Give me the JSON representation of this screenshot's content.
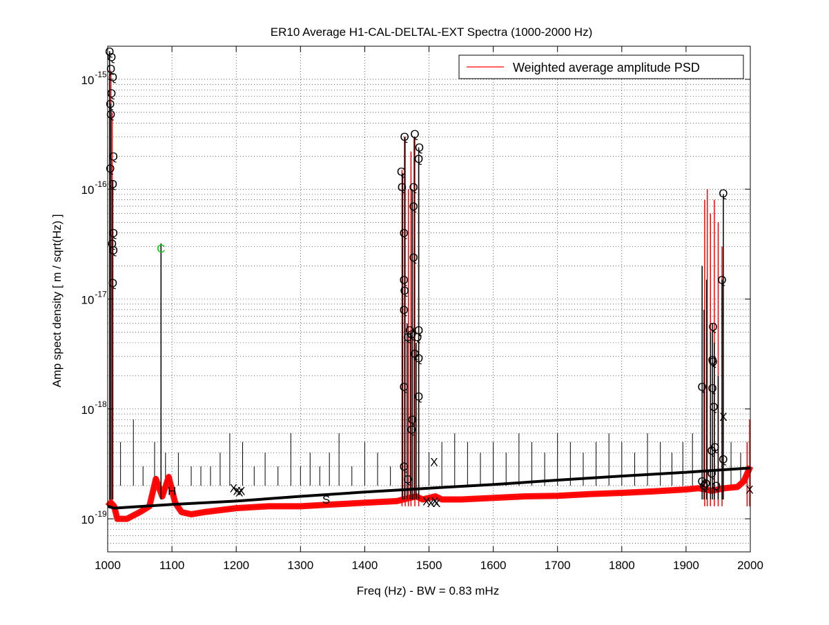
{
  "chart_data": {
    "type": "line",
    "title": "ER10 Average H1-CAL-DELTAL-EXT Spectra (1000-2000 Hz)",
    "xlabel": "Freq (Hz) - BW = 0.83 mHz",
    "ylabel": "Amp spect density [ m / sqrt(Hz) ]",
    "xlim": [
      1000,
      2000
    ],
    "ylim": [
      5e-20,
      2e-15
    ],
    "yscale": "log",
    "grid": true,
    "legend_position": "top-right",
    "xticks": [
      1000,
      1100,
      1200,
      1300,
      1400,
      1500,
      1600,
      1700,
      1800,
      1900,
      2000
    ],
    "xtick_labels": [
      "1000",
      "1100",
      "1200",
      "1300",
      "1400",
      "1500",
      "1600",
      "1700",
      "1800",
      "1900",
      "2000"
    ],
    "yticks": [
      1e-19,
      1e-18,
      1e-17,
      1e-16,
      1e-15
    ],
    "ytick_labels": [
      {
        "base": "10",
        "exp": "-19"
      },
      {
        "base": "10",
        "exp": "-18"
      },
      {
        "base": "10",
        "exp": "-17"
      },
      {
        "base": "10",
        "exp": "-16"
      },
      {
        "base": "10",
        "exp": "-15"
      }
    ],
    "series": [
      {
        "name": "Weighted average amplitude PSD",
        "color": "#ff0000",
        "x": [
          1000,
          1005,
          1010,
          1015,
          1030,
          1050,
          1065,
          1075,
          1085,
          1095,
          1105,
          1115,
          1130,
          1150,
          1200,
          1250,
          1300,
          1350,
          1400,
          1450,
          1460,
          1480,
          1490,
          1500,
          1510,
          1520,
          1550,
          1600,
          1650,
          1700,
          1750,
          1800,
          1850,
          1900,
          1920,
          1940,
          1960,
          1980,
          1990,
          2000
        ],
        "y": [
          1.3e-19,
          1.4e-19,
          1.3e-19,
          1e-19,
          1e-19,
          1.15e-19,
          1.3e-19,
          2.3e-19,
          1.6e-19,
          2.4e-19,
          1.4e-19,
          1.15e-19,
          1.1e-19,
          1.15e-19,
          1.25e-19,
          1.3e-19,
          1.3e-19,
          1.35e-19,
          1.4e-19,
          1.45e-19,
          1.5e-19,
          1.6e-19,
          1.5e-19,
          1.55e-19,
          1.6e-19,
          1.5e-19,
          1.5e-19,
          1.55e-19,
          1.6e-19,
          1.62e-19,
          1.68e-19,
          1.72e-19,
          1.78e-19,
          1.85e-19,
          1.9e-19,
          1.8e-19,
          1.9e-19,
          1.95e-19,
          2.2e-19,
          3e-19
        ]
      }
    ],
    "floor": {
      "color": "#000000",
      "x": [
        1000,
        1010,
        1100,
        1200,
        1300,
        1400,
        1500,
        1600,
        1700,
        1800,
        1900,
        2000
      ],
      "y": [
        1.3e-19,
        1.25e-19,
        1.35e-19,
        1.45e-19,
        1.6e-19,
        1.75e-19,
        1.9e-19,
        2.05e-19,
        2.25e-19,
        2.45e-19,
        2.65e-19,
        2.9e-19
      ]
    },
    "red_peaks": [
      {
        "x": 1003,
        "y": 1.8e-15
      },
      {
        "x": 1005,
        "y": 1.2e-15
      },
      {
        "x": 1007,
        "y": 5e-16
      },
      {
        "x": 1458,
        "y": 1.5e-16
      },
      {
        "x": 1463,
        "y": 3e-16
      },
      {
        "x": 1468,
        "y": 1e-16
      },
      {
        "x": 1472,
        "y": 2.2e-16
      },
      {
        "x": 1478,
        "y": 3e-16
      },
      {
        "x": 1484,
        "y": 2e-16
      },
      {
        "x": 1929,
        "y": 8e-17
      },
      {
        "x": 1933,
        "y": 1e-16
      },
      {
        "x": 1938,
        "y": 6e-17
      },
      {
        "x": 1944,
        "y": 8e-17
      },
      {
        "x": 1950,
        "y": 5e-17
      },
      {
        "x": 1956,
        "y": 3e-17
      },
      {
        "x": 1995,
        "y": 5e-19
      },
      {
        "x": 1999,
        "y": 8e-19
      }
    ],
    "black_peaks": [
      {
        "x": 1003,
        "y": 1.8e-15
      },
      {
        "x": 1005,
        "y": 6e-16
      },
      {
        "x": 1008,
        "y": 1.2e-16
      },
      {
        "x": 1083,
        "y": 3.2e-17
      },
      {
        "x": 1459,
        "y": 1.4e-16
      },
      {
        "x": 1462,
        "y": 3e-16
      },
      {
        "x": 1466,
        "y": 6e-18
      },
      {
        "x": 1471,
        "y": 5e-18
      },
      {
        "x": 1474,
        "y": 1e-16
      },
      {
        "x": 1477,
        "y": 3e-16
      },
      {
        "x": 1480,
        "y": 4e-18
      },
      {
        "x": 1484,
        "y": 2.4e-16
      },
      {
        "x": 1925,
        "y": 2e-17
      },
      {
        "x": 1928,
        "y": 8e-18
      },
      {
        "x": 1932,
        "y": 1.5e-17
      },
      {
        "x": 1938,
        "y": 5e-18
      },
      {
        "x": 1941,
        "y": 6e-18
      },
      {
        "x": 1944,
        "y": 4e-18
      },
      {
        "x": 1950,
        "y": 2e-18
      },
      {
        "x": 1956,
        "y": 1.5e-17
      },
      {
        "x": 1958,
        "y": 9e-17
      }
    ],
    "comb_lines": [
      {
        "x": 1020,
        "y": 5e-19
      },
      {
        "x": 1040,
        "y": 8e-19
      },
      {
        "x": 1055,
        "y": 3e-19
      },
      {
        "x": 1073,
        "y": 5e-19
      },
      {
        "x": 1090,
        "y": 4e-19
      },
      {
        "x": 1110,
        "y": 4e-19
      },
      {
        "x": 1130,
        "y": 3e-19
      },
      {
        "x": 1145,
        "y": 3e-19
      },
      {
        "x": 1160,
        "y": 3e-19
      },
      {
        "x": 1175,
        "y": 4e-19
      },
      {
        "x": 1190,
        "y": 6e-19
      },
      {
        "x": 1210,
        "y": 5e-19
      },
      {
        "x": 1228,
        "y": 3e-19
      },
      {
        "x": 1245,
        "y": 4e-19
      },
      {
        "x": 1265,
        "y": 3e-19
      },
      {
        "x": 1285,
        "y": 6e-19
      },
      {
        "x": 1300,
        "y": 3e-19
      },
      {
        "x": 1315,
        "y": 4e-19
      },
      {
        "x": 1330,
        "y": 3e-19
      },
      {
        "x": 1345,
        "y": 4e-19
      },
      {
        "x": 1360,
        "y": 6e-19
      },
      {
        "x": 1380,
        "y": 3e-19
      },
      {
        "x": 1400,
        "y": 5e-19
      },
      {
        "x": 1420,
        "y": 4e-19
      },
      {
        "x": 1440,
        "y": 3e-19
      },
      {
        "x": 1500,
        "y": 4e-19
      },
      {
        "x": 1520,
        "y": 5e-19
      },
      {
        "x": 1540,
        "y": 6e-19
      },
      {
        "x": 1560,
        "y": 5e-19
      },
      {
        "x": 1580,
        "y": 4e-19
      },
      {
        "x": 1600,
        "y": 5e-19
      },
      {
        "x": 1620,
        "y": 4e-19
      },
      {
        "x": 1640,
        "y": 6e-19
      },
      {
        "x": 1660,
        "y": 5e-19
      },
      {
        "x": 1680,
        "y": 4e-19
      },
      {
        "x": 1700,
        "y": 6e-19
      },
      {
        "x": 1720,
        "y": 5e-19
      },
      {
        "x": 1740,
        "y": 4e-19
      },
      {
        "x": 1760,
        "y": 5e-19
      },
      {
        "x": 1780,
        "y": 6e-19
      },
      {
        "x": 1800,
        "y": 5e-19
      },
      {
        "x": 1820,
        "y": 4e-19
      },
      {
        "x": 1840,
        "y": 6e-19
      },
      {
        "x": 1860,
        "y": 5e-19
      },
      {
        "x": 1878,
        "y": 4e-19
      },
      {
        "x": 1895,
        "y": 5e-19
      },
      {
        "x": 1910,
        "y": 6e-19
      },
      {
        "x": 1970,
        "y": 5e-19
      },
      {
        "x": 1985,
        "y": 4e-19
      }
    ],
    "markers": [
      {
        "symbol": "Q",
        "color": "#000000",
        "points": [
          {
            "x": 1003,
            "y": 1.8e-15
          },
          {
            "x": 1006,
            "y": 1.6e-15
          },
          {
            "x": 1005,
            "y": 1.25e-15
          },
          {
            "x": 1008,
            "y": 1.05e-15
          },
          {
            "x": 1006,
            "y": 7.5e-16
          },
          {
            "x": 1004,
            "y": 6e-16
          },
          {
            "x": 1005,
            "y": 4.8e-16
          },
          {
            "x": 1009,
            "y": 2e-16
          },
          {
            "x": 1004,
            "y": 1.55e-16
          },
          {
            "x": 1008,
            "y": 1.12e-16
          },
          {
            "x": 1009,
            "y": 4e-17
          },
          {
            "x": 1007,
            "y": 3.2e-17
          },
          {
            "x": 1009,
            "y": 2.8e-17
          },
          {
            "x": 1008,
            "y": 1.4e-17
          },
          {
            "x": 1462,
            "y": 3e-16
          },
          {
            "x": 1457,
            "y": 1.45e-16
          },
          {
            "x": 1458,
            "y": 1.05e-16
          },
          {
            "x": 1461,
            "y": 4e-17
          },
          {
            "x": 1461,
            "y": 1.5e-17
          },
          {
            "x": 1462,
            "y": 1.2e-17
          },
          {
            "x": 1461,
            "y": 8e-18
          },
          {
            "x": 1467,
            "y": 4.5e-18
          },
          {
            "x": 1470,
            "y": 5.2e-18
          },
          {
            "x": 1461,
            "y": 1.6e-18
          },
          {
            "x": 1461,
            "y": 3e-19
          },
          {
            "x": 1478,
            "y": 3.2e-16
          },
          {
            "x": 1476,
            "y": 1.05e-16
          },
          {
            "x": 1476,
            "y": 7e-17
          },
          {
            "x": 1476,
            "y": 2.4e-17
          },
          {
            "x": 1473,
            "y": 4.8e-18
          },
          {
            "x": 1482,
            "y": 4.5e-18
          },
          {
            "x": 1484,
            "y": 5.2e-18
          },
          {
            "x": 1478,
            "y": 3.2e-18
          },
          {
            "x": 1484,
            "y": 2.9e-18
          },
          {
            "x": 1485,
            "y": 2.4e-16
          },
          {
            "x": 1484,
            "y": 1.9e-16
          },
          {
            "x": 1484,
            "y": 1.3e-18
          },
          {
            "x": 1474,
            "y": 8e-19
          },
          {
            "x": 1473,
            "y": 6.5e-19
          },
          {
            "x": 1467,
            "y": 2.3e-19
          },
          {
            "x": 1958,
            "y": 9.2e-17
          },
          {
            "x": 1956,
            "y": 1.5e-17
          },
          {
            "x": 1942,
            "y": 5.6e-18
          },
          {
            "x": 1941,
            "y": 2.8e-18
          },
          {
            "x": 1942,
            "y": 2.7e-18
          },
          {
            "x": 1941,
            "y": 1.55e-18
          },
          {
            "x": 1925,
            "y": 1.6e-18
          },
          {
            "x": 1943,
            "y": 1.05e-18
          },
          {
            "x": 1945,
            "y": 4.5e-19
          },
          {
            "x": 1940,
            "y": 4.2e-19
          },
          {
            "x": 1958,
            "y": 3.5e-19
          },
          {
            "x": 1925,
            "y": 2.2e-19
          },
          {
            "x": 1928,
            "y": 2e-19
          },
          {
            "x": 1931,
            "y": 2.1e-19
          },
          {
            "x": 1940,
            "y": 2.6e-19
          },
          {
            "x": 1947,
            "y": 2e-19
          }
        ]
      },
      {
        "symbol": "C",
        "color": "#00cc00",
        "points": [
          {
            "x": 1083,
            "y": 2.9e-17
          }
        ]
      },
      {
        "symbol": "X",
        "color": "#000000",
        "points": [
          {
            "x": 1196,
            "y": 1.9e-19
          },
          {
            "x": 1201,
            "y": 1.8e-19
          },
          {
            "x": 1205,
            "y": 1.75e-19
          },
          {
            "x": 1208,
            "y": 1.8e-19
          },
          {
            "x": 1508,
            "y": 3.3e-19
          },
          {
            "x": 1496,
            "y": 1.45e-19
          },
          {
            "x": 1503,
            "y": 1.4e-19
          },
          {
            "x": 1509,
            "y": 1.45e-19
          },
          {
            "x": 1512,
            "y": 1.4e-19
          },
          {
            "x": 1958,
            "y": 8.5e-19
          },
          {
            "x": 1999,
            "y": 1.85e-19
          }
        ]
      },
      {
        "symbol": "S",
        "color": "#000000",
        "points": [
          {
            "x": 1340,
            "y": 1.5e-19
          }
        ]
      },
      {
        "symbol": "H",
        "color": "#000000",
        "points": [
          {
            "x": 1100,
            "y": 1.8e-19
          }
        ]
      }
    ],
    "legend": [
      {
        "label": "Weighted average amplitude PSD",
        "color": "#ff0000"
      }
    ]
  }
}
